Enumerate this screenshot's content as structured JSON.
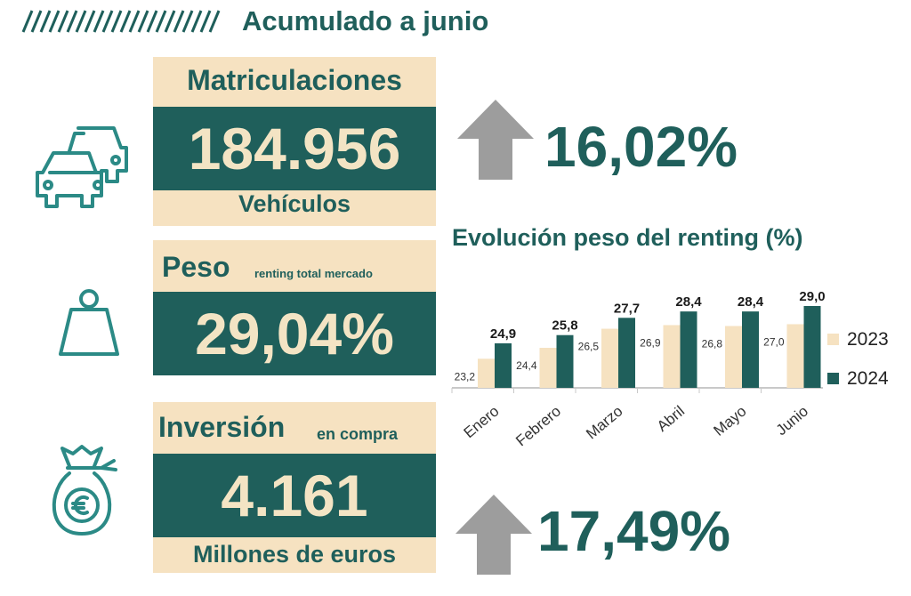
{
  "header": {
    "title": "Acumulado a junio"
  },
  "matriculaciones": {
    "label": "Matriculaciones",
    "value": "184.956",
    "unit": "Vehículos",
    "change": "16,02%"
  },
  "peso": {
    "label": "Peso",
    "sublabel": "renting total mercado",
    "value": "29,04%"
  },
  "inversion": {
    "label": "Inversión",
    "sublabel": "en compra",
    "value": "4.161",
    "unit": "Millones de euros",
    "change": "17,49%"
  },
  "icons": {
    "vehicles": "cars-icon",
    "weight": "weight-icon",
    "money": "money-bag-euro-icon",
    "up": "arrow-up-icon"
  },
  "colors": {
    "primary": "#1f5f5b",
    "cream": "#f6e2c1",
    "arrow": "#9d9d9d"
  },
  "chart_data": {
    "type": "bar",
    "title": "Evolución peso del renting (%)",
    "categories": [
      "Enero",
      "Febrero",
      "Marzo",
      "Abril",
      "Mayo",
      "Junio"
    ],
    "series": [
      {
        "name": "2023",
        "values": [
          23.2,
          24.4,
          26.5,
          26.9,
          26.8,
          27.0
        ],
        "labels": [
          "23,2",
          "24,4",
          "26,5",
          "26,9",
          "26,8",
          "27,0"
        ],
        "color": "#f6e2c1"
      },
      {
        "name": "2024",
        "values": [
          24.9,
          25.8,
          27.7,
          28.4,
          28.4,
          29.0
        ],
        "labels": [
          "24,9",
          "25,8",
          "27,7",
          "28,4",
          "28,4",
          "29,0"
        ],
        "color": "#1f5f5b"
      }
    ],
    "legend": "right",
    "grid": false
  }
}
